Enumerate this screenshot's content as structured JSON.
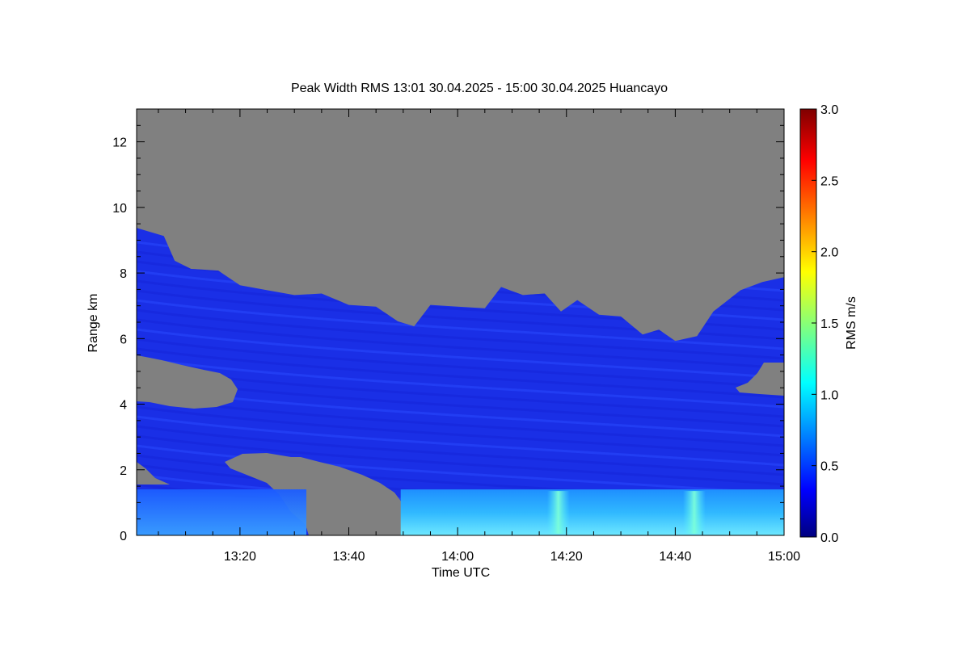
{
  "chart_data": {
    "type": "heatmap",
    "title": "Peak Width RMS   13:01 30.04.2025 - 15:00 30.04.2025 Huancayo",
    "xlabel": "Time UTC",
    "ylabel": "Range km",
    "colorbar_label": "RMS m/s",
    "x_range_minutes": [
      781,
      900
    ],
    "y_range": [
      0,
      13
    ],
    "x_ticks": [
      {
        "minute": 800,
        "label": "13:20"
      },
      {
        "minute": 820,
        "label": "13:40"
      },
      {
        "minute": 840,
        "label": "14:00"
      },
      {
        "minute": 860,
        "label": "14:20"
      },
      {
        "minute": 880,
        "label": "14:40"
      },
      {
        "minute": 900,
        "label": "15:00"
      }
    ],
    "y_ticks": [
      {
        "value": 0,
        "label": "0"
      },
      {
        "value": 2,
        "label": "2"
      },
      {
        "value": 4,
        "label": "4"
      },
      {
        "value": 6,
        "label": "6"
      },
      {
        "value": 8,
        "label": "8"
      },
      {
        "value": 10,
        "label": "10"
      },
      {
        "value": 12,
        "label": "12"
      }
    ],
    "colorbar_range": [
      0,
      3
    ],
    "colorbar_ticks": [
      {
        "value": 0.0,
        "label": "0.0"
      },
      {
        "value": 0.5,
        "label": "0.5"
      },
      {
        "value": 1.0,
        "label": "1.0"
      },
      {
        "value": 1.5,
        "label": "1.5"
      },
      {
        "value": 2.0,
        "label": "2.0"
      },
      {
        "value": 2.5,
        "label": "2.5"
      },
      {
        "value": 3.0,
        "label": "3.0"
      }
    ],
    "colorscale": "jet",
    "missing_color": "#808080",
    "data_top_km": [
      [
        781,
        9.3
      ],
      [
        786,
        9.2
      ],
      [
        788,
        8.3
      ],
      [
        791,
        8.2
      ],
      [
        796,
        8.0
      ],
      [
        800,
        7.7
      ],
      [
        805,
        7.4
      ],
      [
        810,
        7.4
      ],
      [
        815,
        7.3
      ],
      [
        820,
        7.1
      ],
      [
        825,
        6.9
      ],
      [
        829,
        6.6
      ],
      [
        832,
        6.3
      ],
      [
        835,
        7.1
      ],
      [
        840,
        6.9
      ],
      [
        845,
        7.0
      ],
      [
        848,
        7.5
      ],
      [
        852,
        7.4
      ],
      [
        856,
        7.3
      ],
      [
        859,
        6.9
      ],
      [
        862,
        7.1
      ],
      [
        866,
        6.8
      ],
      [
        870,
        6.6
      ],
      [
        874,
        6.2
      ],
      [
        877,
        6.2
      ],
      [
        880,
        6.0
      ],
      [
        884,
        6.0
      ],
      [
        887,
        6.9
      ],
      [
        892,
        7.4
      ],
      [
        896,
        7.8
      ],
      [
        900,
        7.8
      ]
    ],
    "low_layer": {
      "top_km": 1.4,
      "value_ms": 0.8
    },
    "enhanced_streaks": [
      {
        "minute": 858.5,
        "value_ms": 1.1
      },
      {
        "minute": 883.5,
        "value_ms": 1.0
      }
    ]
  }
}
